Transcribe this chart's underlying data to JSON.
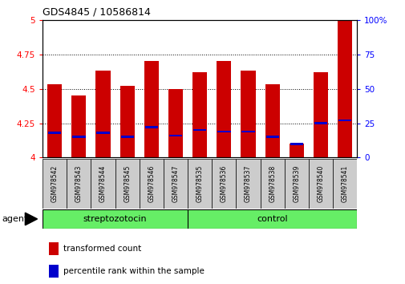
{
  "title": "GDS4845 / 10586814",
  "samples": [
    "GSM978542",
    "GSM978543",
    "GSM978544",
    "GSM978545",
    "GSM978546",
    "GSM978547",
    "GSM978535",
    "GSM978536",
    "GSM978537",
    "GSM978538",
    "GSM978539",
    "GSM978540",
    "GSM978541"
  ],
  "transformed_count": [
    4.53,
    4.45,
    4.63,
    4.52,
    4.7,
    4.5,
    4.62,
    4.7,
    4.63,
    4.53,
    4.1,
    4.62,
    5.0
  ],
  "percentile_rank": [
    18,
    15,
    18,
    15,
    22,
    16,
    20,
    19,
    19,
    15,
    10,
    25,
    27
  ],
  "y_min": 4.0,
  "y_max": 5.0,
  "y_left_ticks": [
    4.0,
    4.25,
    4.5,
    4.75,
    5.0
  ],
  "y_right_ticks": [
    0,
    25,
    50,
    75,
    100
  ],
  "bar_color": "#cc0000",
  "blue_color": "#0000cc",
  "streptozotocin_samples": 6,
  "group1_label": "streptozotocin",
  "group2_label": "control",
  "group_bg_color": "#66ee66",
  "tick_bg_color": "#cccccc",
  "agent_label": "agent",
  "legend_red": "transformed count",
  "legend_blue": "percentile rank within the sample",
  "bar_width": 0.6,
  "figsize": [
    5.06,
    3.54
  ],
  "dpi": 100
}
